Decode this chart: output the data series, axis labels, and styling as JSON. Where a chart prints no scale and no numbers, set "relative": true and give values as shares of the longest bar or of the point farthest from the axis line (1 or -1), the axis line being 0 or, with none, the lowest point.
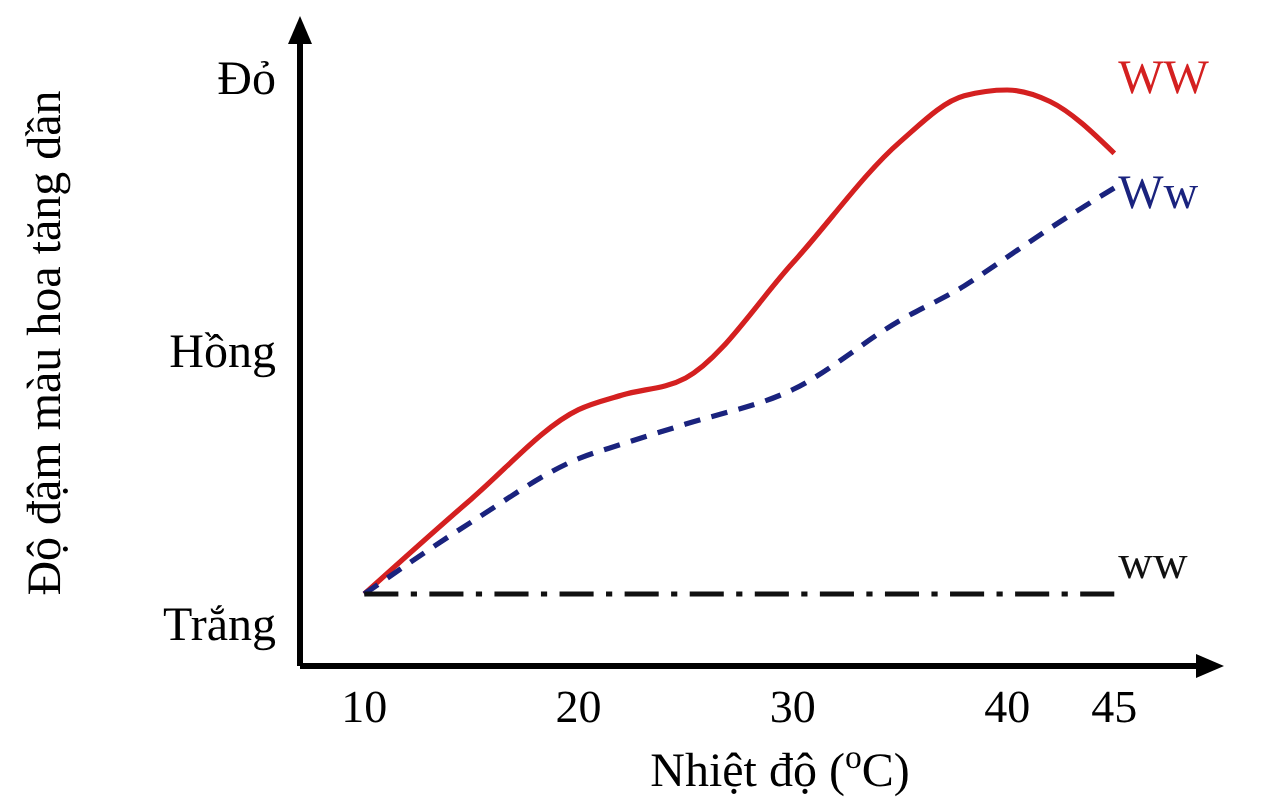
{
  "chart_data": {
    "type": "line",
    "xlabel": "Nhiệt độ ($^{o}$C)",
    "ylabel": "Độ đậm màu hoa tăng dần",
    "x": [
      10,
      15,
      20,
      22,
      25,
      30,
      35,
      38,
      40,
      42,
      45
    ],
    "xlim": [
      7,
      49
    ],
    "xticks": [
      10,
      20,
      30,
      40,
      45
    ],
    "relative": true,
    "annotations": [
      "Trắng",
      "Hồng",
      "Đỏ"
    ],
    "marker": "none",
    "series": [
      {
        "name": "WW",
        "color": "#d42020",
        "line_style": "solid",
        "values": [
          0.125,
          0.29,
          0.445,
          0.47,
          0.5,
          0.7,
          0.91,
          0.99,
          1,
          0.98,
          0.89
        ]
      },
      {
        "name": "Ww",
        "color": "#1a237e",
        "line_style": "dashed",
        "values": [
          0.125,
          0.25,
          0.36,
          0.385,
          0.42,
          0.48,
          0.6,
          0.66,
          0.71,
          0.76,
          0.83
        ]
      },
      {
        "name": "ww",
        "color": "#111111",
        "line_style": "dashdot",
        "values": [
          0.125,
          0.125,
          0.125,
          0.125,
          0.125,
          0.125,
          0.125,
          0.125,
          0.125,
          0.125,
          0.125
        ]
      }
    ]
  }
}
